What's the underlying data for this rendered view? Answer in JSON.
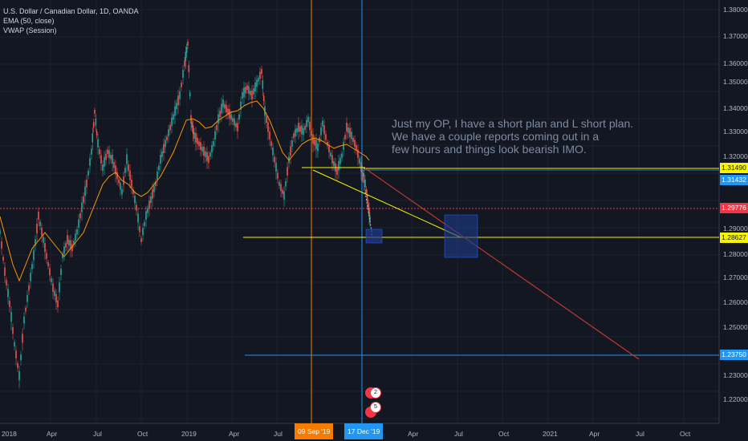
{
  "legend": {
    "symbol": "U.S. Dollar / Canadian Dollar, 1D, OANDA",
    "ema": "EMA (50, close)",
    "vwap": "VWAP (Session)"
  },
  "note": "Just my OP, I have a short plan and L short plan.\nWe have a couple reports coming out in a\nfew hours and things look bearish IMO.",
  "y_axis": [
    "1.38000",
    "1.37000",
    "1.36000",
    "1.35000",
    "1.34000",
    "1.33000",
    "1.32000",
    "1.29000",
    "1.28000",
    "1.27000",
    "1.26000",
    "1.25000",
    "1.23000",
    "1.22000"
  ],
  "x_axis": [
    "2018",
    "Apr",
    "Jul",
    "Oct",
    "2019",
    "Apr",
    "Jul",
    "Apr",
    "Jul",
    "Oct",
    "2021",
    "Apr",
    "Jul",
    "Oct"
  ],
  "price_labels": [
    {
      "text": "1.31490",
      "color": "#f5f500"
    },
    {
      "text": "1.31432",
      "color": "#2196f3"
    },
    {
      "text": "1.29776",
      "color": "#f23645"
    },
    {
      "text": "1.28627",
      "color": "#f5f500"
    },
    {
      "text": "1.23750",
      "color": "#2196f3"
    }
  ],
  "date_badges": [
    {
      "text": "09 Sep '19",
      "color": "#f57c00"
    },
    {
      "text": "17 Dec '19",
      "color": "#2196f3"
    }
  ],
  "events": [
    "2",
    "5"
  ],
  "colors": {
    "background": "#131722",
    "candle_up": "#26a69a",
    "candle_down": "#ef5350",
    "ema": "#ff9800",
    "vwap": "#c0392b",
    "yellow": "#f5f500",
    "blue": "#2196f3",
    "red": "#f23645",
    "box": "#1e3a8a"
  }
}
